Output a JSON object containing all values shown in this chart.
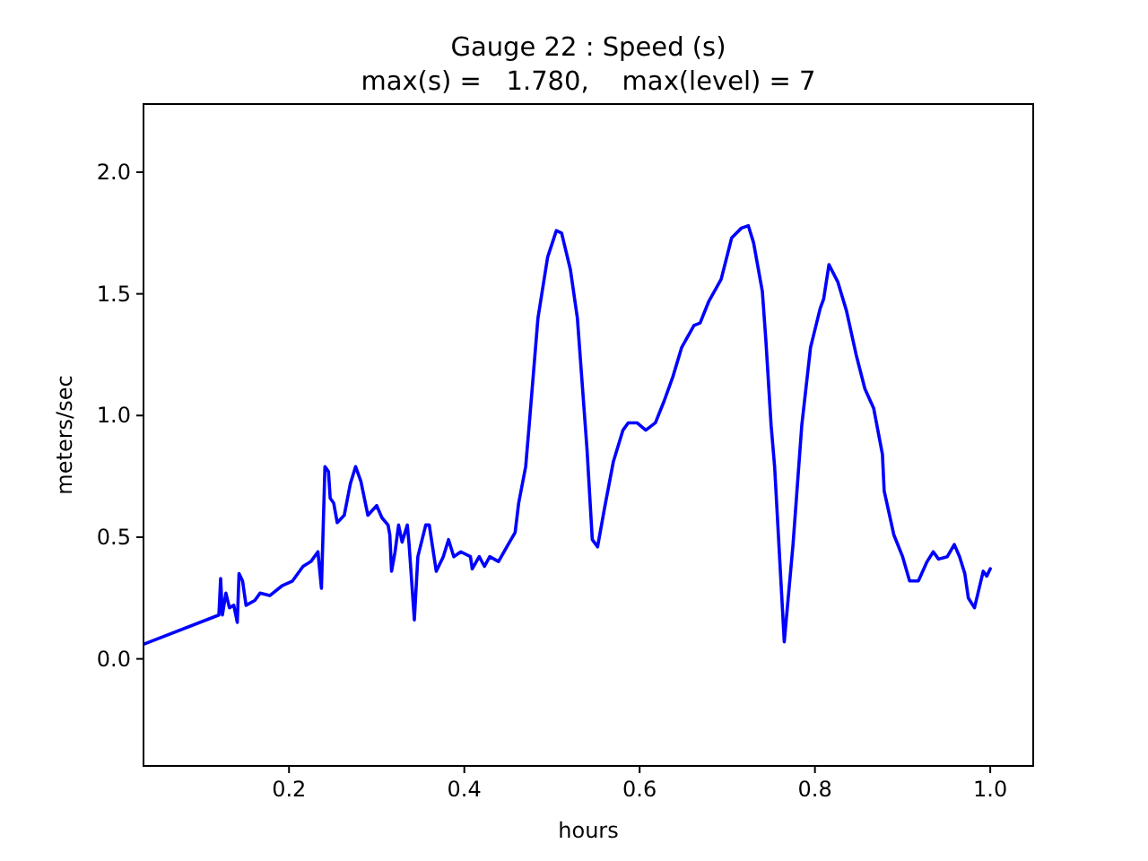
{
  "chart_data": {
    "type": "line",
    "title": "Gauge 22 : Speed (s)",
    "subtitle": "max(s) =   1.780,    max(level) = 7",
    "xlabel": "hours",
    "ylabel": "meters/sec",
    "xlim": [
      0.034,
      1.049
    ],
    "ylim": [
      -0.44,
      2.28
    ],
    "xticks": [
      0.2,
      0.4,
      0.6,
      0.8,
      {
        "value": 1,
        "label": "1.0"
      }
    ],
    "yticks": [
      {
        "value": 0,
        "label": "0.0"
      },
      0.5,
      {
        "value": 1,
        "label": "1.0"
      },
      1.5,
      {
        "value": 2,
        "label": "2.0"
      }
    ],
    "grid": false,
    "marker": "none",
    "line_style": "solid",
    "series": [
      {
        "color": "#0000ff",
        "x": [
          0.034,
          0.12,
          0.122,
          0.124,
          0.128,
          0.132,
          0.137,
          0.141,
          0.143,
          0.147,
          0.151,
          0.161,
          0.167,
          0.178,
          0.192,
          0.204,
          0.216,
          0.225,
          0.233,
          0.237,
          0.241,
          0.245,
          0.247,
          0.251,
          0.255,
          0.263,
          0.27,
          0.276,
          0.282,
          0.29,
          0.3,
          0.306,
          0.313,
          0.315,
          0.317,
          0.321,
          0.325,
          0.329,
          0.335,
          0.337,
          0.343,
          0.347,
          0.356,
          0.36,
          0.368,
          0.376,
          0.382,
          0.388,
          0.396,
          0.407,
          0.409,
          0.417,
          0.423,
          0.429,
          0.439,
          0.45,
          0.458,
          0.462,
          0.47,
          0.474,
          0.484,
          0.495,
          0.505,
          0.511,
          0.521,
          0.529,
          0.54,
          0.546,
          0.552,
          0.56,
          0.57,
          0.581,
          0.587,
          0.597,
          0.607,
          0.618,
          0.628,
          0.638,
          0.648,
          0.662,
          0.669,
          0.679,
          0.693,
          0.705,
          0.716,
          0.724,
          0.73,
          0.74,
          0.744,
          0.75,
          0.754,
          0.765,
          0.775,
          0.785,
          0.795,
          0.806,
          0.81,
          0.816,
          0.826,
          0.836,
          0.847,
          0.857,
          0.867,
          0.877,
          0.879,
          0.89,
          0.9,
          0.908,
          0.918,
          0.928,
          0.935,
          0.941,
          0.951,
          0.959,
          0.965,
          0.971,
          0.975,
          0.982,
          0.986,
          0.992,
          0.996,
          1.0
        ],
        "values": [
          0.06,
          0.18,
          0.33,
          0.18,
          0.27,
          0.21,
          0.22,
          0.15,
          0.35,
          0.32,
          0.22,
          0.24,
          0.27,
          0.26,
          0.3,
          0.32,
          0.38,
          0.4,
          0.44,
          0.29,
          0.79,
          0.77,
          0.66,
          0.64,
          0.56,
          0.59,
          0.72,
          0.79,
          0.73,
          0.59,
          0.63,
          0.58,
          0.55,
          0.51,
          0.36,
          0.44,
          0.55,
          0.48,
          0.55,
          0.47,
          0.16,
          0.42,
          0.55,
          0.55,
          0.36,
          0.42,
          0.49,
          0.42,
          0.44,
          0.42,
          0.37,
          0.42,
          0.38,
          0.42,
          0.4,
          0.47,
          0.52,
          0.64,
          0.79,
          0.96,
          1.4,
          1.65,
          1.76,
          1.75,
          1.6,
          1.4,
          0.86,
          0.49,
          0.46,
          0.62,
          0.81,
          0.94,
          0.97,
          0.97,
          0.94,
          0.97,
          1.06,
          1.16,
          1.28,
          1.37,
          1.38,
          1.47,
          1.56,
          1.73,
          1.77,
          1.78,
          1.71,
          1.51,
          1.31,
          0.96,
          0.79,
          0.07,
          0.47,
          0.96,
          1.28,
          1.44,
          1.48,
          1.62,
          1.55,
          1.43,
          1.25,
          1.11,
          1.03,
          0.84,
          0.69,
          0.51,
          0.42,
          0.32,
          0.32,
          0.4,
          0.44,
          0.41,
          0.42,
          0.47,
          0.42,
          0.35,
          0.25,
          0.21,
          0.27,
          0.36,
          0.34,
          0.37
        ]
      }
    ]
  }
}
